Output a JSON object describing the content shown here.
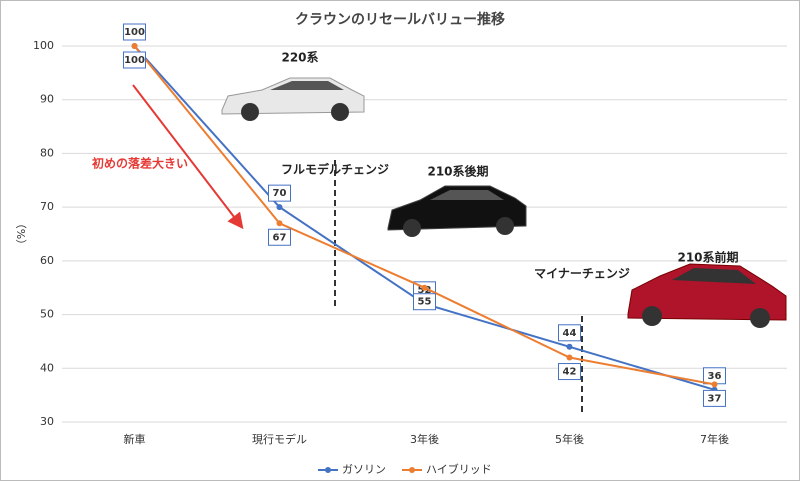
{
  "chart_data": {
    "type": "line",
    "title": "クラウンのリセールバリュー推移",
    "y_label": "（%）",
    "categories": [
      "新車",
      "現行モデル",
      "3年後",
      "5年後",
      "7年後"
    ],
    "series": [
      {
        "name": "ガソリン",
        "color": "#4472c4",
        "values": [
          100,
          70,
          52,
          44,
          36
        ]
      },
      {
        "name": "ハイブリッド",
        "color": "#ed7d31",
        "values": [
          100,
          67,
          55,
          42,
          37
        ]
      }
    ],
    "ylim": [
      30,
      100
    ],
    "yticks": [
      30,
      40,
      50,
      60,
      70,
      80,
      90,
      100
    ],
    "grid": true,
    "legend": "bottom",
    "annotations": [
      "220系",
      "フルモデルチェンジ",
      "210系後期",
      "マイナーチェンジ",
      "210系前期",
      "初めの落差大きい"
    ]
  }
}
